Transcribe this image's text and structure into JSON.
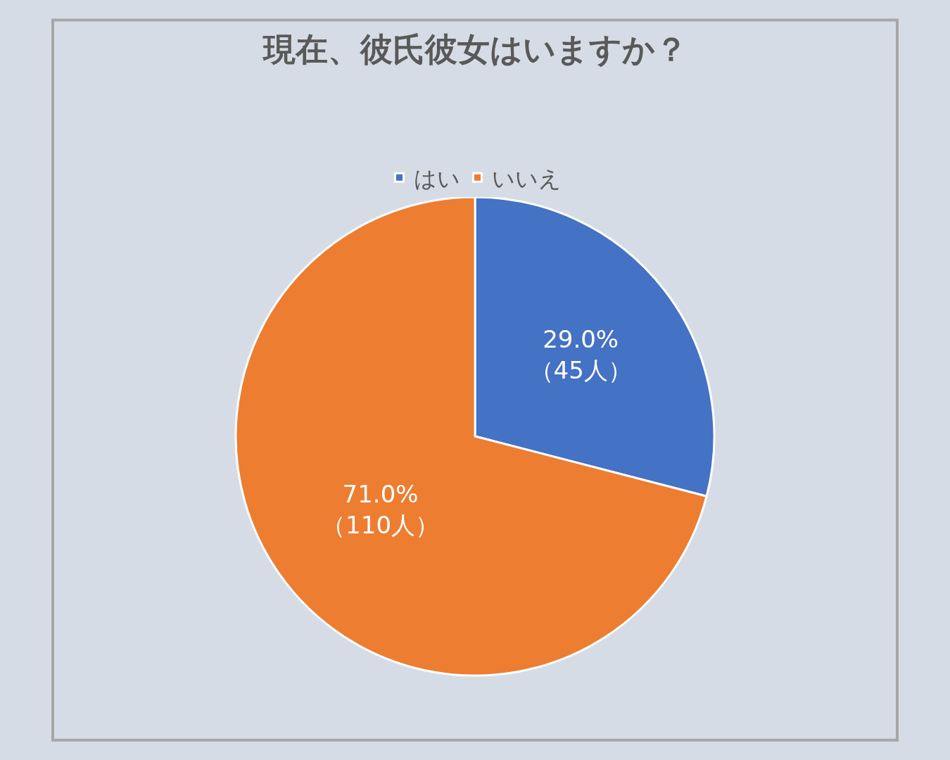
{
  "chart_data": {
    "type": "pie",
    "title": "現在、彼氏彼女はいますか？",
    "categories": [
      "はい",
      "いいえ"
    ],
    "values": [
      45,
      110
    ],
    "colors": [
      "#4472c4",
      "#ed7d31"
    ],
    "value_labels": [
      "29.0%\n（45人）",
      "71.0%\n（110人）"
    ],
    "legend": "top"
  }
}
